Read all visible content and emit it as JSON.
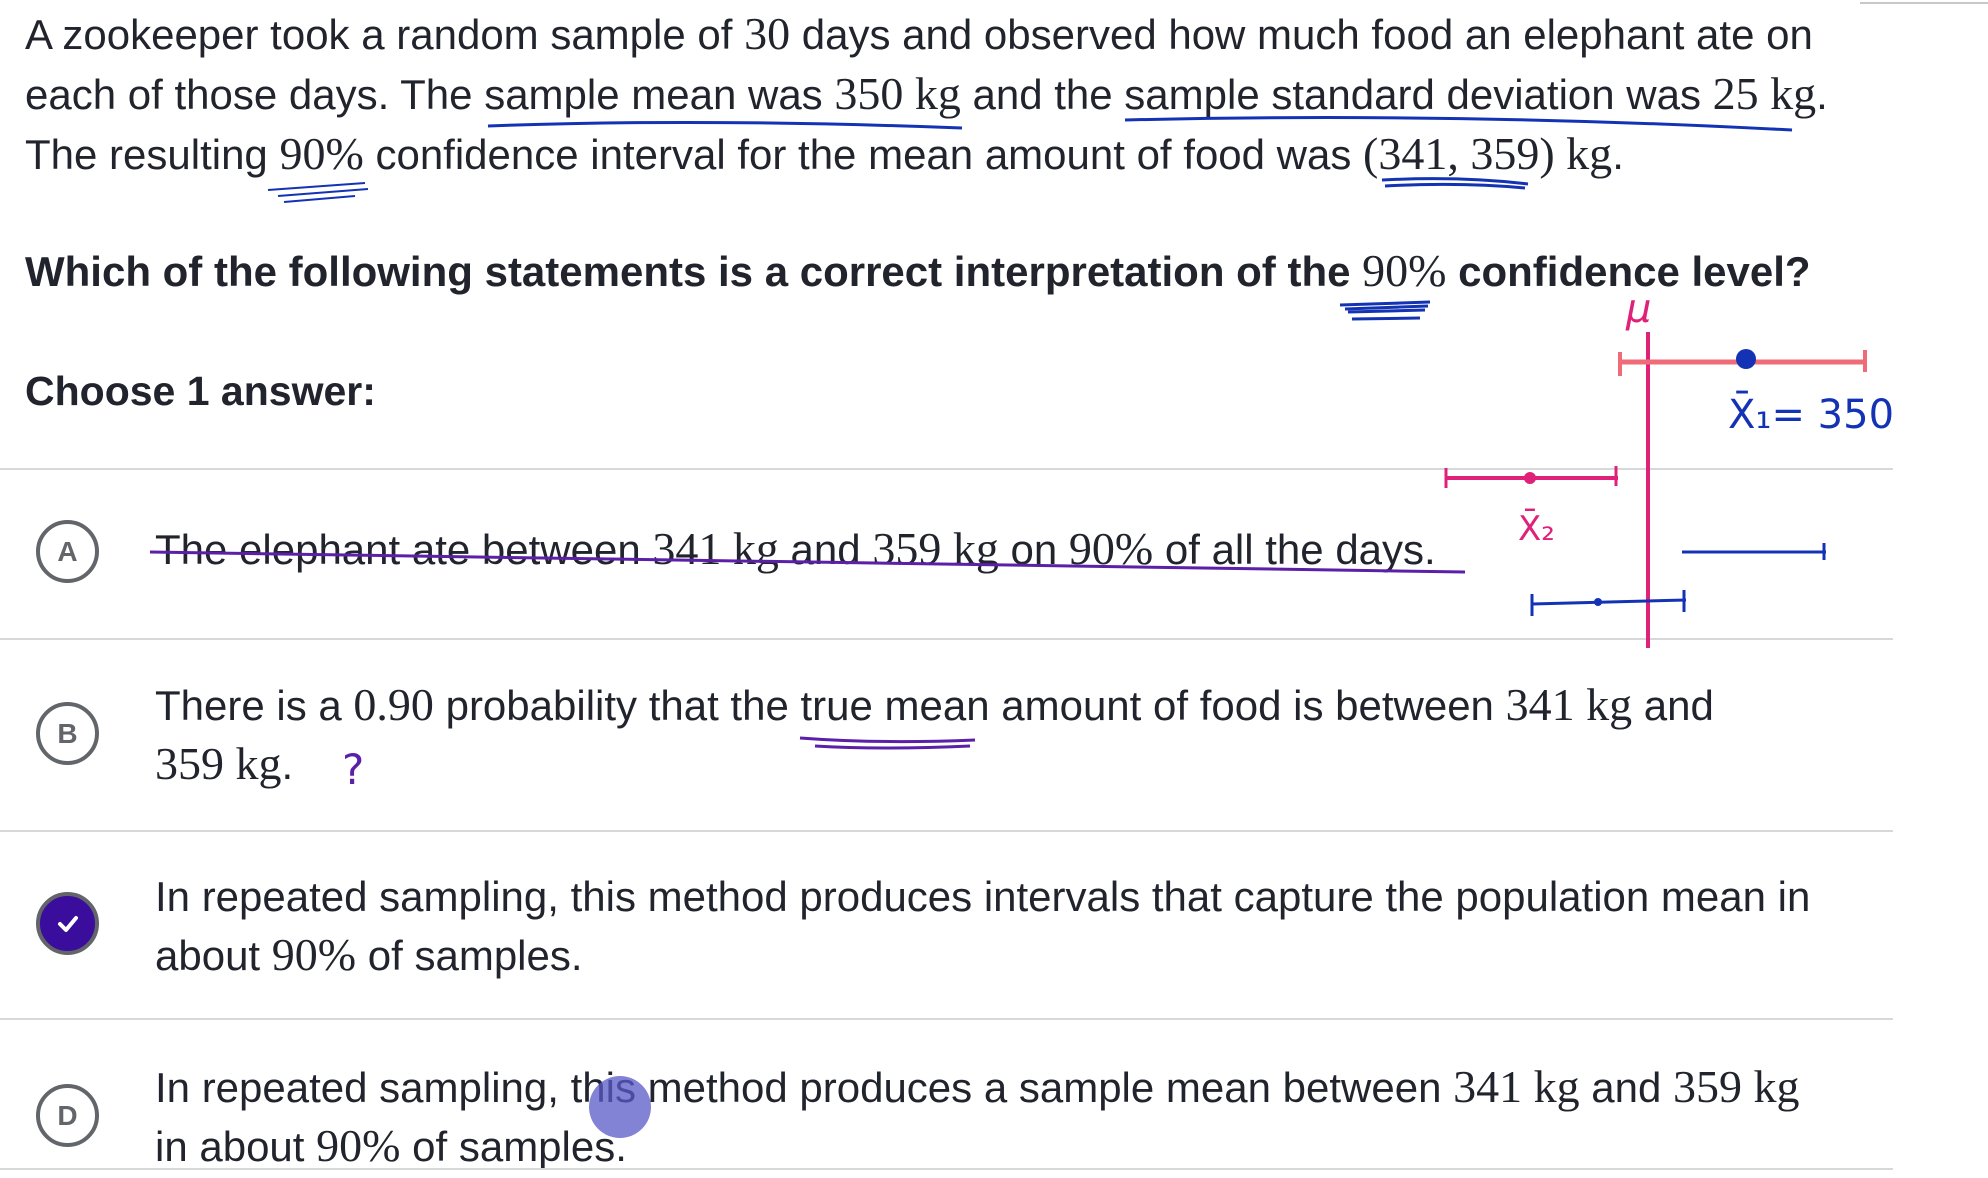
{
  "stem": {
    "p1": "A zookeeper took a random sample of ",
    "n": "30",
    "p2": " days and observed how much food an elephant ate on each of those days. The sample mean was ",
    "mean": "350 kg",
    "p3": " and the sample standard deviation was ",
    "sd": "25 kg",
    "p4": ". The resulting ",
    "conf": "90%",
    "p5": " confidence interval for the mean amount of food was ",
    "interval": "(341, 359) kg",
    "p6": "."
  },
  "question": {
    "p1": "Which of the following statements is a correct interpretation of the ",
    "conf": "90%",
    "p2": " confidence level?"
  },
  "choose_label": "Choose 1 answer:",
  "choices": [
    {
      "letter": "A",
      "p1": "The elephant ate between ",
      "m1": "341 kg",
      "p2": " and ",
      "m2": "359 kg",
      "p3": " on ",
      "m3": "90%",
      "p4": " of all the days.",
      "selected": false
    },
    {
      "letter": "B",
      "p1": "There is a ",
      "m1": "0.90",
      "p2": " probability that the true mean amount of food is between ",
      "m2": "341 kg",
      "p3": " and ",
      "m3": "359 kg",
      "p4": ".",
      "selected": false
    },
    {
      "letter": "C",
      "p1": "In repeated sampling, this method produces intervals that capture the population mean in about ",
      "m1": "90%",
      "p2": " of samples.",
      "selected": true
    },
    {
      "letter": "D",
      "p1": "In repeated sampling, this method produces a sample mean between ",
      "m1": "341 kg",
      "p2": " and ",
      "m2": "359 kg",
      "p3": " in about ",
      "m3": "90%",
      "p4": " of samples.",
      "selected": false
    }
  ],
  "annotations": {
    "mu": "μ",
    "x1": "X̄₁= 350",
    "x2": "X̄₂",
    "question_mark": "?"
  },
  "colors": {
    "purple_ink": "#5b1fa8",
    "blue_ink": "#1433b4",
    "pink_ink": "#e0217a",
    "salmon_ink": "#f06b78",
    "selected_bubble": "#3b0d9c"
  }
}
